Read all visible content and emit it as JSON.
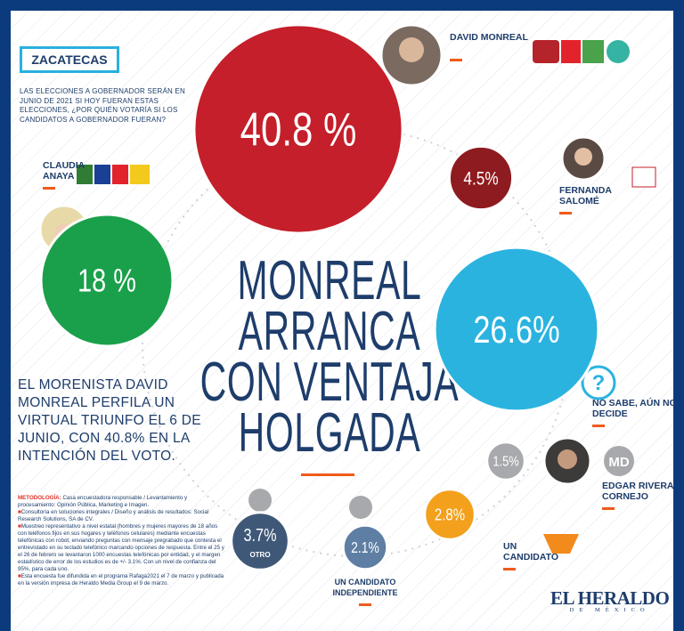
{
  "header": {
    "region": "ZACATECAS",
    "question": "LAS ELECCIONES A GOBERNADOR SERÁN EN JUNIO DE 2021 SI HOY FUERAN ESTAS ELECCIONES, ¿POR QUIÉN VOTARÍA SI LOS CANDIDATOS A GOBERNADOR FUERAN?"
  },
  "chart_data": {
    "type": "bubble",
    "title_lines": [
      "MONREAL",
      "ARRANCA",
      "CON VENTAJA",
      "HOLGADA"
    ],
    "categories": [
      "DAVID MONREAL",
      "FERNANDA SALOMÉ",
      "CLAUDIA ANAYA",
      "NO SABE, AÚN NO DECIDE",
      "EDGAR RIVERA CORNEJO",
      "UN CANDIDATO",
      "UN CANDIDATO INDEPENDIENTE",
      "OTRO"
    ],
    "values": [
      40.8,
      4.5,
      18,
      26.6,
      1.5,
      2.8,
      2.1,
      3.7
    ],
    "value_labels": [
      "40.8 %",
      "4.5%",
      "18 %",
      "26.6%",
      "1.5%",
      "2.8%",
      "2.1%",
      "3.7%"
    ],
    "colors": [
      "#c41f2a",
      "#8e1b1f",
      "#1aa04a",
      "#2bb3e0",
      "#a7a9ac",
      "#f3a01c",
      "#5e7fa3",
      "#3f5878"
    ]
  },
  "lede": "EL MORENISTA DAVID MONREAL PERFILA UN VIRTUAL TRIUNFO EL 6 DE JUNIO, CON 40.8% EN LA INTENCIÓN DEL VOTO.",
  "methodology": {
    "label": "METODOLOGÍA:",
    "items": [
      "Casa encuestadora responsable / Levantamiento y procesamiento: Opinión Pública, Marketing e Imagen.",
      "Consultoría en soluciones integrales / Diseño y análisis de resultados: Social Research Solutions, SA de CV.",
      "Muestreo representativo a nivel estatal (hombres y mujeres mayores de 18 años con teléfonos fijos en sus hogares y teléfonos celulares) mediante encuestas telefónicas con robot, enviando preguntas con mensaje pregrabado que contesta el entrevistado en su teclado telefónico marcando opciones de respuesta. Entre el 25 y el 26 de febrero se levantaron 1000 encuestas telefónicas por entidad, y el margen estadístico de error de los estudios es de +/- 3.1%. Con un nivel de confianza del 95%, para cada uno.",
      "Esta encuesta fue difundida en el programa Rafaga2021 el 7 de marzo y publicada en la versión impresa de Heraldo Media Group el 9 de marzo."
    ]
  },
  "icons": {
    "unknown": "?",
    "initials": "MD"
  },
  "logo": {
    "name": "EL HERALDO",
    "tagline": "DE MÉXICO"
  }
}
